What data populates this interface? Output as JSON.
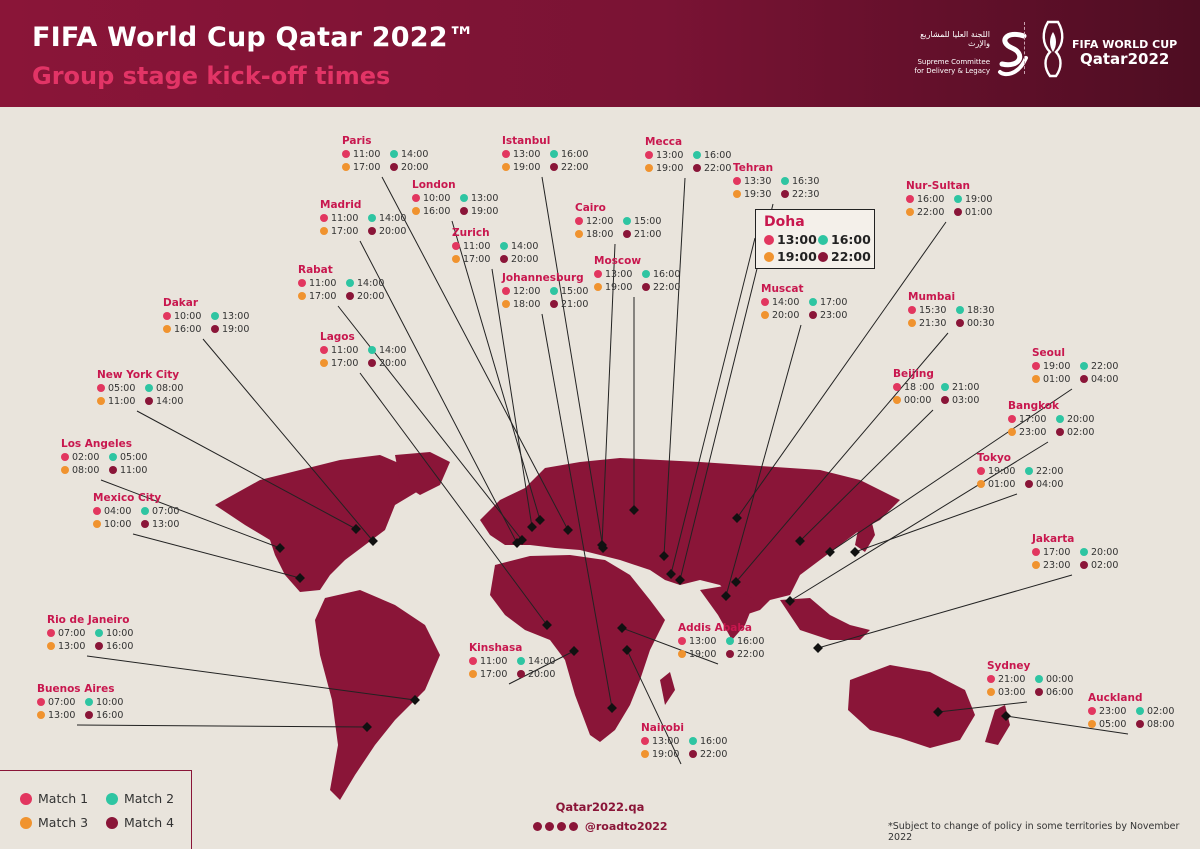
{
  "header": {
    "title": "FIFA World Cup Qatar 2022™",
    "subtitle": "Group stage kick-off times",
    "sc_logo_arabic": "اللجنة العليا للمشاريع والإرث",
    "sc_logo_line1": "Supreme Committee",
    "sc_logo_line2": "for Delivery & Legacy",
    "wc_logo_line1": "FIFA WORLD CUP",
    "wc_logo_line2": "Qatar2022"
  },
  "colors": {
    "maroon": "#8a1538",
    "match1": "#e2365f",
    "match2": "#2ec5a2",
    "match3": "#f0932f",
    "match4": "#8a1538",
    "background": "#e9e4dc"
  },
  "doha": {
    "name": "Doha",
    "times": [
      "13:00",
      "16:00",
      "19:00",
      "22:00"
    ]
  },
  "cities": [
    {
      "name": "Paris",
      "times": [
        "11:00",
        "14:00",
        "17:00",
        "20:00"
      ]
    },
    {
      "name": "Istanbul",
      "times": [
        "13:00",
        "16:00",
        "19:00",
        "22:00"
      ]
    },
    {
      "name": "Mecca",
      "times": [
        "13:00",
        "16:00",
        "19:00",
        "22:00"
      ]
    },
    {
      "name": "Tehran",
      "times": [
        "13:30",
        "16:30",
        "19:30",
        "22:30"
      ]
    },
    {
      "name": "London",
      "times": [
        "10:00",
        "13:00",
        "16:00",
        "19:00"
      ]
    },
    {
      "name": "Madrid",
      "times": [
        "11:00",
        "14:00",
        "17:00",
        "20:00"
      ]
    },
    {
      "name": "Cairo",
      "times": [
        "12:00",
        "15:00",
        "18:00",
        "21:00"
      ]
    },
    {
      "name": "Nur-Sultan",
      "times": [
        "16:00",
        "19:00",
        "22:00",
        "01:00"
      ]
    },
    {
      "name": "Zurich",
      "times": [
        "11:00",
        "14:00",
        "17:00",
        "20:00"
      ]
    },
    {
      "name": "Moscow",
      "times": [
        "13:00",
        "16:00",
        "19:00",
        "22:00"
      ]
    },
    {
      "name": "Rabat",
      "times": [
        "11:00",
        "14:00",
        "17:00",
        "20:00"
      ]
    },
    {
      "name": "Johannesburg",
      "times": [
        "12:00",
        "15:00",
        "18:00",
        "21:00"
      ]
    },
    {
      "name": "Muscat",
      "times": [
        "14:00",
        "17:00",
        "20:00",
        "23:00"
      ]
    },
    {
      "name": "Mumbai",
      "times": [
        "15:30",
        "18:30",
        "21:30",
        "00:30"
      ]
    },
    {
      "name": "Dakar",
      "times": [
        "10:00",
        "13:00",
        "16:00",
        "19:00"
      ]
    },
    {
      "name": "Lagos",
      "times": [
        "11:00",
        "14:00",
        "17:00",
        "20:00"
      ]
    },
    {
      "name": "Seoul",
      "times": [
        "19:00",
        "22:00",
        "01:00",
        "04:00"
      ]
    },
    {
      "name": "New York City",
      "times": [
        "05:00",
        "08:00",
        "11:00",
        "14:00"
      ]
    },
    {
      "name": "Beijing",
      "times": [
        "18 :00",
        "21:00",
        "00:00",
        "03:00"
      ]
    },
    {
      "name": "Bangkok",
      "times": [
        "17:00",
        "20:00",
        "23:00",
        "02:00"
      ]
    },
    {
      "name": "Los Angeles",
      "times": [
        "02:00",
        "05:00",
        "08:00",
        "11:00"
      ]
    },
    {
      "name": "Tokyo",
      "times": [
        "19:00",
        "22:00",
        "01:00",
        "04:00"
      ]
    },
    {
      "name": "Mexico City",
      "times": [
        "04:00",
        "07:00",
        "10:00",
        "13:00"
      ]
    },
    {
      "name": "Jakarta",
      "times": [
        "17:00",
        "20:00",
        "23:00",
        "02:00"
      ]
    },
    {
      "name": "Rio de Janeiro",
      "times": [
        "07:00",
        "10:00",
        "13:00",
        "16:00"
      ]
    },
    {
      "name": "Addis Ababa",
      "times": [
        "13:00",
        "16:00",
        "19:00",
        "22:00"
      ]
    },
    {
      "name": "Kinshasa",
      "times": [
        "11:00",
        "14:00",
        "17:00",
        "20:00"
      ]
    },
    {
      "name": "Sydney",
      "times": [
        "21:00",
        "00:00",
        "03:00",
        "06:00"
      ]
    },
    {
      "name": "Buenos Aires",
      "times": [
        "07:00",
        "10:00",
        "13:00",
        "16:00"
      ]
    },
    {
      "name": "Auckland",
      "times": [
        "23:00",
        "02:00",
        "05:00",
        "08:00"
      ]
    },
    {
      "name": "Nairobi",
      "times": [
        "13:00",
        "16:00",
        "19:00",
        "22:00"
      ]
    }
  ],
  "legend": {
    "match1": "Match 1",
    "match2": "Match 2",
    "match3": "Match 3",
    "match4": "Match 4"
  },
  "footer": {
    "website": "Qatar2022.qa",
    "social_handle": "@roadto2022",
    "social_icons": [
      "facebook-icon",
      "instagram-icon",
      "twitter-icon",
      "youtube-icon"
    ],
    "note": "*Subject to change of policy in some territories by November 2022"
  }
}
